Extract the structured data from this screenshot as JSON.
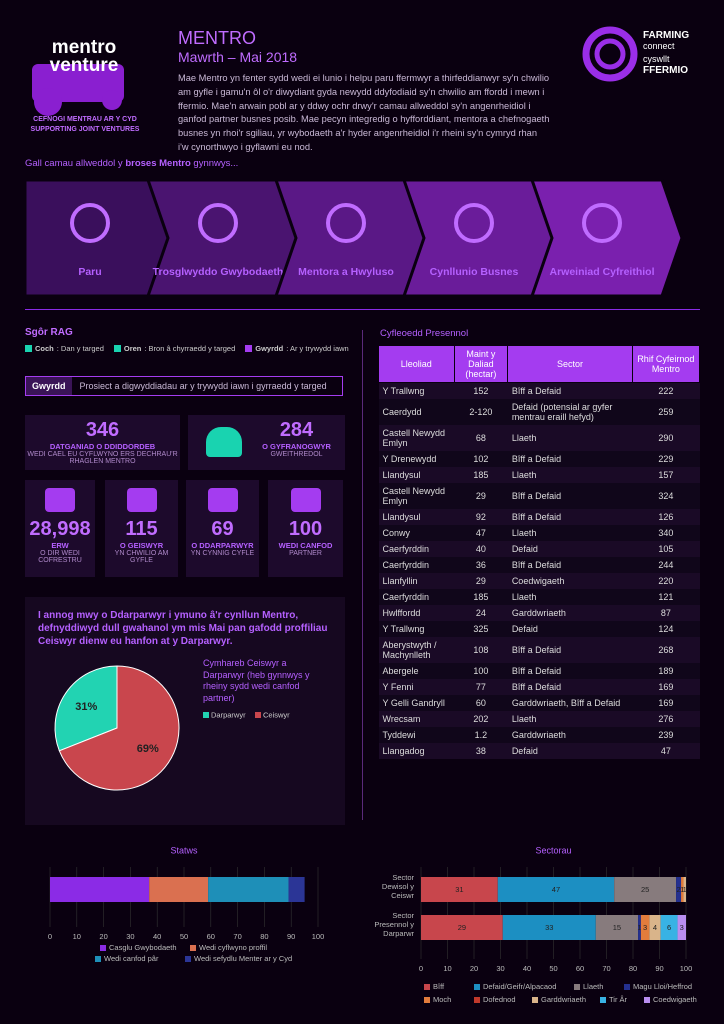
{
  "header": {
    "logo": {
      "line1": "mentro",
      "line2": "venture",
      "tagline1": "CEFNOGI MENTRAU AR Y CYD",
      "tagline2": "SUPPORTING JOINT VENTURES"
    },
    "title": "MENTRO",
    "subtitle": "Mawrth – Mai 2018",
    "intro": "Mae Mentro yn fenter sydd wedi ei lunio i helpu paru ffermwyr a thirfeddianwyr sy'n chwilio am gyfle i gamu'n ôl o'r diwydiant gyda newydd ddyfodiaid sy'n chwilio am ffordd i mewn i ffermio. Mae'n arwain pobl ar y ddwy ochr drwy'r camau allweddol sy'n angenrheidiol i ganfod partner busnes posib. Mae pecyn integredig o hyfforddiant, mentora a chefnogaeth busnes yn rhoi'r sgiliau, yr wybodaeth a'r hyder angenrheidiol i'r rheini sy'n cymryd rhan i'w cynorthwyo i gyflawni eu nod.",
    "partner_logo": [
      "FARMING",
      "connect",
      "cyswllt",
      "FFERMIO"
    ]
  },
  "process": {
    "heading": [
      "Gall camau allweddol y ",
      "broses Mentro",
      " gynnwys..."
    ],
    "steps": [
      "Paru",
      "Trosglwyddo Gwybodaeth",
      "Mentora a Hwyluso",
      "Cynllunio Busnes",
      "Arweiniad Cyfreithiol"
    ]
  },
  "rag": {
    "title": "Sgôr RAG",
    "legend": [
      {
        "name": "Coch",
        "text": ": Dan y targed",
        "color": "#19d3b0"
      },
      {
        "name": "Oren",
        "text": ": Bron â chyrraedd y targed",
        "color": "#19d3b0"
      },
      {
        "name": "Gwyrdd",
        "text": ": Ar y trywydd iawn",
        "color": "#a43cf0"
      }
    ],
    "status": "Gwyrdd",
    "status_text": "Prosiect a digwyddiadau ar y trywydd iawn i gyrraedd y targed"
  },
  "stats": [
    {
      "value": "346",
      "label": "DATGANIAD O DDIDDORDEB",
      "sub": "WEDI CAEL EU CYFLWYNO ERS DECHRAU'R RHAGLEN MENTRO"
    },
    {
      "value": "284",
      "label": "O GYFRANOGWYR",
      "sub": "GWEITHREDOL"
    },
    {
      "value": "28,998",
      "label": "ERW",
      "sub": "O DIR WEDI COFRESTRU"
    },
    {
      "value": "115",
      "label": "O GEISWYR",
      "sub": "YN CHWILIO AM GYFLE"
    },
    {
      "value": "69",
      "label": "O DDARPARWYR",
      "sub": "YN CYNNIG CYFLE"
    },
    {
      "value": "100",
      "label": "WEDI CANFOD",
      "sub": "PARTNER"
    }
  ],
  "ratio": {
    "question": "I annog mwy o Ddarparwyr i ymuno â'r cynllun Mentro, defnyddiwyd dull gwahanol ym mis Mai pan gafodd proffiliau Ceiswyr dienw eu hanfon at y Darparwyr."
  },
  "table": {
    "title": "Cyfleoedd Presennol",
    "headers": [
      "Lleoliad",
      "Maint y Daliad (hectar)",
      "Sector",
      "Rhif Cyfeirnod Mentro"
    ],
    "rows": [
      [
        "Y Trallwng",
        "152",
        "Bîff a Defaid",
        "222"
      ],
      [
        "Caerdydd",
        "2-120",
        "Defaid (potensial ar gyfer mentrau eraill hefyd)",
        "259"
      ],
      [
        "Castell Newydd Emlyn",
        "68",
        "Llaeth",
        "290"
      ],
      [
        "Y Drenewydd",
        "102",
        "Bîff a Defaid",
        "229"
      ],
      [
        "Llandysul",
        "185",
        "Llaeth",
        "157"
      ],
      [
        "Castell Newydd Emlyn",
        "29",
        "Bîff a Defaid",
        "324"
      ],
      [
        "Llandysul",
        "92",
        "Bîff a Defaid",
        "126"
      ],
      [
        "Conwy",
        "47",
        "Llaeth",
        "340"
      ],
      [
        "Caerfyrddin",
        "40",
        "Defaid",
        "105"
      ],
      [
        "Caerfyrddin",
        "36",
        "Bîff a Defaid",
        "244"
      ],
      [
        "Llanfyllin",
        "29",
        "Coedwigaeth",
        "220"
      ],
      [
        "Caerfyrddin",
        "185",
        "Llaeth",
        "121"
      ],
      [
        "Hwlffordd",
        "24",
        "Garddwriaeth",
        "87"
      ],
      [
        "Y Trallwng",
        "325",
        "Defaid",
        "124"
      ],
      [
        "Aberystwyth / Machynlleth",
        "108",
        "Bîff a Defaid",
        "268"
      ],
      [
        "Abergele",
        "100",
        "Bîff a Defaid",
        "189"
      ],
      [
        "Y Fenni",
        "77",
        "Bîff a Defaid",
        "169"
      ],
      [
        "Y Gelli Gandryll",
        "60",
        "Garddwriaeth, Bîff a Defaid",
        "169"
      ],
      [
        "Wrecsam",
        "202",
        "Llaeth",
        "276"
      ],
      [
        "Tyddewi",
        "1.2",
        "Garddwriaeth",
        "239"
      ],
      [
        "Llangadog",
        "38",
        "Defaid",
        "47"
      ]
    ]
  },
  "chart_data": [
    {
      "type": "pie",
      "title": "Cymhareb Ceiswyr a Darparwyr (heb gynnwys y rheiny sydd wedi canfod partner)",
      "labels": [
        "Darparwyr",
        "Ceiswyr"
      ],
      "values": [
        31,
        69
      ],
      "value_labels": [
        "31%",
        "69%"
      ],
      "colors": [
        "#22d3b2",
        "#c9464d"
      ]
    },
    {
      "type": "bar",
      "orientation": "horizontal",
      "stacked": true,
      "title": "Statws",
      "series": [
        {
          "name": "Casglu Gwybodaeth",
          "color": "#8b2be6",
          "values": [
            37
          ]
        },
        {
          "name": "Wedi cyflwyno proffil",
          "color": "#da7050",
          "values": [
            22
          ]
        },
        {
          "name": "Wedi canfod pâr",
          "color": "#1e8fb8",
          "values": [
            30
          ]
        },
        {
          "name": "Wedi sefydlu Menter ar y Cyd",
          "color": "#2b3596",
          "values": [
            6
          ]
        }
      ],
      "xlim": [
        0,
        100
      ],
      "xticks": [
        0,
        10,
        20,
        30,
        40,
        50,
        60,
        70,
        80,
        90,
        100
      ],
      "grid": true
    },
    {
      "type": "bar",
      "orientation": "horizontal",
      "stacked": "percent",
      "title": "Sectorau",
      "categories": [
        "Sector Dewisol y Ceiswr",
        "Sector Presennol y Darparwr"
      ],
      "series": [
        {
          "name": "Bîff",
          "color": "#c8464c",
          "values": [
            31,
            29
          ]
        },
        {
          "name": "Defaid/Geifr/Alpacaod",
          "color": "#1c8fc2",
          "values": [
            47,
            33
          ]
        },
        {
          "name": "Llaeth",
          "color": "#877b7d",
          "values": [
            25,
            15
          ]
        },
        {
          "name": "Magu Lloi/Heffrod",
          "color": "#24308f",
          "values": [
            2,
            1
          ]
        },
        {
          "name": "Moch",
          "color": "#e27c3c",
          "values": [
            1,
            3
          ]
        },
        {
          "name": "Dofednod",
          "color": "#c0392b",
          "values": [
            0,
            0
          ]
        },
        {
          "name": "Garddwriaeth",
          "color": "#d9b48a",
          "values": [
            1,
            4
          ]
        },
        {
          "name": "Tir Âr",
          "color": "#38b2e4",
          "values": [
            0,
            6
          ]
        },
        {
          "name": "Coedwigaeth",
          "color": "#b98ef0",
          "values": [
            0,
            3
          ]
        }
      ],
      "xlim": [
        0,
        100
      ],
      "xticks": [
        0,
        10,
        20,
        30,
        40,
        50,
        60,
        70,
        80,
        90,
        100
      ],
      "grid": true
    }
  ]
}
